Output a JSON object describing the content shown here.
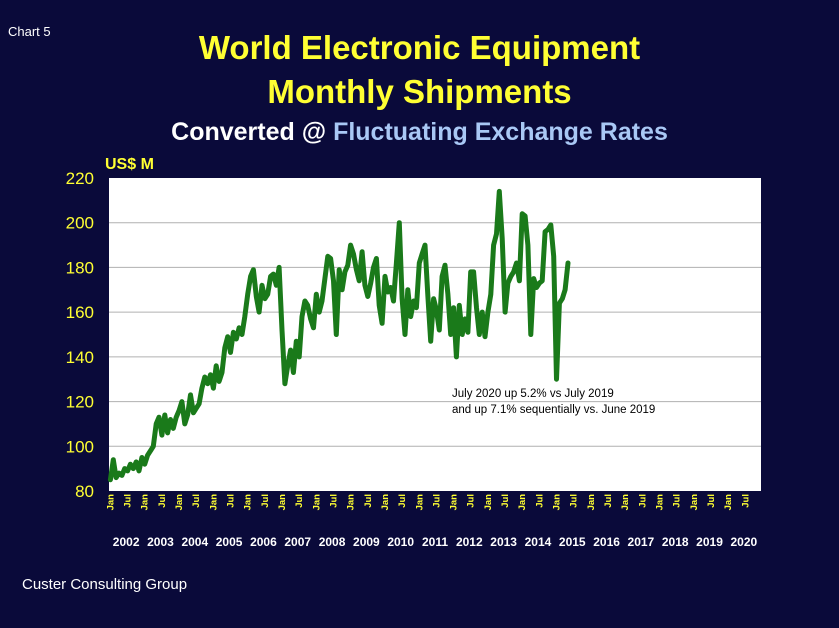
{
  "chart_number": "Chart 5",
  "footer": "Custer Consulting Group",
  "chart_data": {
    "type": "line",
    "title_line1": "World Electronic Equipment",
    "title_line2": "Monthly Shipments",
    "subtitle_white": "Converted @",
    "subtitle_blue": "Fluctuating Exchange Rates",
    "ylabel": "US$ M",
    "ylim": [
      80,
      220
    ],
    "yticks": [
      80,
      100,
      120,
      140,
      160,
      180,
      200,
      220
    ],
    "grid": true,
    "annotation_line1": "July 2020 up 5.2% vs July 2019",
    "annotation_line2": "and up 7.1% sequentially vs. June 2019",
    "month_tick_labels": [
      "Jan",
      "Jul"
    ],
    "years": [
      "2002",
      "2003",
      "2004",
      "2005",
      "2006",
      "2007",
      "2008",
      "2009",
      "2010",
      "2011",
      "2012",
      "2013",
      "2014",
      "2015",
      "2016",
      "2017",
      "2018",
      "2019",
      "2020"
    ],
    "x_start": "2002-01",
    "x_end": "2020-07",
    "line_color": "#1a7a1a",
    "series": [
      {
        "values": [
          85,
          94,
          86,
          88,
          87,
          90,
          89,
          92,
          90,
          93,
          89,
          95,
          92,
          96,
          98,
          100,
          110,
          113,
          105,
          114,
          106,
          112,
          108,
          113,
          116,
          120,
          110,
          114,
          123,
          115,
          117,
          119,
          126,
          131,
          128,
          132,
          126,
          136,
          129,
          133,
          144,
          149,
          142,
          151,
          148,
          153,
          150,
          158,
          168,
          176,
          179,
          167,
          160,
          172,
          166,
          168,
          176,
          177,
          172,
          180,
          152,
          128,
          136,
          143,
          133,
          147,
          140,
          158,
          165,
          163,
          157,
          153,
          168,
          160,
          165,
          175,
          185,
          184,
          174,
          150,
          179,
          170,
          178,
          181,
          190,
          186,
          179,
          174,
          187,
          172,
          167,
          173,
          180,
          184,
          163,
          155,
          176,
          169,
          171,
          165,
          182,
          200,
          166,
          150,
          170,
          158,
          165,
          162,
          182,
          186,
          190,
          167,
          147,
          166,
          161,
          152,
          176,
          181,
          168,
          150,
          162,
          140,
          163,
          150,
          157,
          151,
          178,
          178,
          162,
          150,
          160,
          149,
          160,
          168,
          190,
          195,
          214,
          193,
          160,
          173,
          176,
          178,
          182,
          174,
          204,
          203,
          190,
          150,
          175,
          171,
          173,
          174,
          196,
          197,
          199,
          185,
          130,
          164,
          166,
          170,
          182
        ]
      }
    ]
  }
}
